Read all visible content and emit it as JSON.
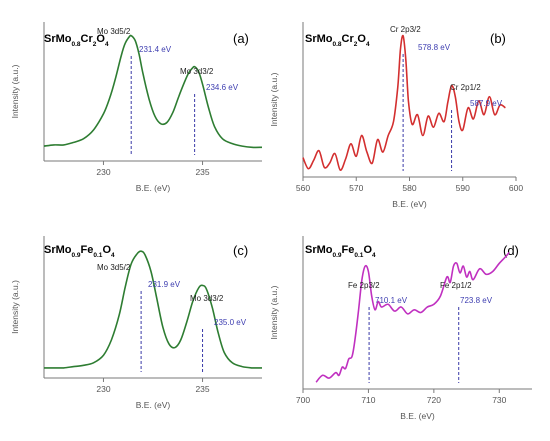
{
  "chart_data": [
    {
      "type": "line",
      "panel_label": "(a)",
      "composition": [
        {
          "text": "SrMo",
          "sub": false
        },
        {
          "text": "0.8",
          "sub": true
        },
        {
          "text": "Cr",
          "sub": false
        },
        {
          "text": "2",
          "sub": true
        },
        {
          "text": "O",
          "sub": false
        },
        {
          "text": "4",
          "sub": true
        }
      ],
      "xlabel": "B.E. (eV)",
      "ylabel": "Intensity (a.u.)",
      "xlim": [
        227.0,
        238.0
      ],
      "ylim": [
        0,
        1.12
      ],
      "xticks": [
        230,
        235
      ],
      "color": "#2e7d32",
      "peaks": [
        {
          "label": "Mo 3d5/2",
          "value": "231.4 eV",
          "x": 231.4
        },
        {
          "label": "Mo 3d3/2",
          "value": "234.6 eV",
          "x": 234.6
        }
      ],
      "series": [
        {
          "x": [
            227.0,
            227.5,
            228.0,
            228.5,
            229.0,
            229.5,
            230.0,
            230.3,
            230.6,
            230.9,
            231.1,
            231.3,
            231.4,
            231.6,
            231.8,
            232.0,
            232.3,
            232.6,
            232.9,
            233.2,
            233.5,
            233.8,
            234.1,
            234.3,
            234.5,
            234.6,
            234.8,
            235.0,
            235.3,
            235.6,
            236.0,
            236.5,
            237.0,
            237.5,
            238.0
          ],
          "y": [
            0.12,
            0.13,
            0.13,
            0.15,
            0.18,
            0.25,
            0.38,
            0.5,
            0.66,
            0.85,
            0.95,
            1.0,
            1.01,
            0.97,
            0.86,
            0.7,
            0.5,
            0.36,
            0.3,
            0.31,
            0.39,
            0.52,
            0.64,
            0.71,
            0.75,
            0.76,
            0.72,
            0.62,
            0.43,
            0.28,
            0.18,
            0.14,
            0.12,
            0.11,
            0.11
          ]
        }
      ]
    },
    {
      "type": "line",
      "panel_label": "(b)",
      "composition": [
        {
          "text": "SrMo",
          "sub": false
        },
        {
          "text": "0.8",
          "sub": true
        },
        {
          "text": "Cr",
          "sub": false
        },
        {
          "text": "2",
          "sub": true
        },
        {
          "text": "O",
          "sub": false
        },
        {
          "text": "4",
          "sub": true
        }
      ],
      "xlabel": "B.E. (eV)",
      "ylabel": "Intensity (a.u.)",
      "xlim": [
        560,
        600
      ],
      "ylim": [
        0,
        1.12
      ],
      "xticks": [
        560,
        570,
        580,
        590,
        600
      ],
      "color": "#d32f2f",
      "peaks": [
        {
          "label": "Cr 2p3/2",
          "value": "578.8 eV",
          "x": 578.8
        },
        {
          "label": "Cr 2p1/2",
          "value": "587.9 eV",
          "x": 587.9
        }
      ],
      "series": [
        {
          "x": [
            560,
            561,
            562,
            563,
            564,
            565,
            566,
            567,
            568,
            569,
            570,
            571,
            572,
            573,
            574,
            575,
            576,
            577,
            577.8,
            578.3,
            578.8,
            579.3,
            579.8,
            580.5,
            581.5,
            582.5,
            583.5,
            584.5,
            585.5,
            586.5,
            587.2,
            587.9,
            588.6,
            589.3,
            590,
            591,
            592,
            593,
            594,
            595,
            596,
            597,
            598
          ],
          "y": [
            0.14,
            0.06,
            0.12,
            0.19,
            0.07,
            0.1,
            0.17,
            0.05,
            0.13,
            0.24,
            0.15,
            0.3,
            0.18,
            0.1,
            0.27,
            0.18,
            0.3,
            0.4,
            0.65,
            0.92,
            1.02,
            0.85,
            0.55,
            0.38,
            0.45,
            0.3,
            0.44,
            0.36,
            0.46,
            0.4,
            0.54,
            0.66,
            0.58,
            0.4,
            0.34,
            0.5,
            0.42,
            0.55,
            0.45,
            0.58,
            0.45,
            0.52,
            0.5
          ]
        }
      ]
    },
    {
      "type": "line",
      "panel_label": "(c)",
      "composition": [
        {
          "text": "SrMo",
          "sub": false
        },
        {
          "text": "0.9",
          "sub": true
        },
        {
          "text": "Fe",
          "sub": false
        },
        {
          "text": "0.1",
          "sub": true
        },
        {
          "text": "O",
          "sub": false
        },
        {
          "text": "4",
          "sub": true
        }
      ],
      "xlabel": "B.E. (eV)",
      "ylabel": "Intensity (a.u.)",
      "xlim": [
        227.0,
        238.0
      ],
      "ylim": [
        0,
        1.12
      ],
      "xticks": [
        230,
        235
      ],
      "color": "#2e7d32",
      "peaks": [
        {
          "label": "Mo 3d5/2",
          "value": "231.9 eV",
          "x": 231.9
        },
        {
          "label": "Mo 3d3/2",
          "value": "235.0 eV",
          "x": 235.0
        }
      ],
      "series": [
        {
          "x": [
            227.0,
            227.5,
            228.0,
            228.5,
            229.0,
            229.5,
            230.0,
            230.4,
            230.8,
            231.1,
            231.4,
            231.7,
            231.9,
            232.1,
            232.4,
            232.7,
            233.0,
            233.3,
            233.6,
            233.9,
            234.2,
            234.5,
            234.8,
            235.0,
            235.2,
            235.5,
            235.8,
            236.1,
            236.5,
            237.0,
            237.5,
            238.0
          ],
          "y": [
            0.08,
            0.08,
            0.08,
            0.09,
            0.1,
            0.12,
            0.18,
            0.3,
            0.5,
            0.72,
            0.9,
            0.98,
            1.0,
            0.97,
            0.84,
            0.62,
            0.4,
            0.27,
            0.24,
            0.3,
            0.44,
            0.6,
            0.71,
            0.73,
            0.7,
            0.55,
            0.35,
            0.2,
            0.12,
            0.09,
            0.08,
            0.08
          ]
        }
      ]
    },
    {
      "type": "line",
      "panel_label": "(d)",
      "composition": [
        {
          "text": "SrMo",
          "sub": false
        },
        {
          "text": "0.9",
          "sub": true
        },
        {
          "text": "Fe",
          "sub": false
        },
        {
          "text": "0.1",
          "sub": true
        },
        {
          "text": "O",
          "sub": false
        },
        {
          "text": "4",
          "sub": true
        }
      ],
      "xlabel": "B.E. (eV)",
      "ylabel": "Intensity (a.u.)",
      "xlim": [
        700,
        735
      ],
      "ylim": [
        0,
        1.12
      ],
      "xticks": [
        700,
        710,
        720,
        730
      ],
      "color": "#c030c0",
      "peaks": [
        {
          "label": "Fe 2p3/2",
          "value": "710.1 eV",
          "x": 710.1
        },
        {
          "label": "Fe 2p1/2",
          "value": "723.8 eV",
          "x": 723.8
        }
      ],
      "series": [
        {
          "x": [
            702,
            703,
            704,
            705,
            705.5,
            706,
            706.5,
            707,
            707.5,
            708,
            708.5,
            709,
            709.5,
            710,
            710.5,
            711,
            711.5,
            712,
            713,
            714,
            715,
            716,
            717,
            718,
            719,
            720,
            721,
            722,
            722.5,
            723,
            723.5,
            724,
            724.5,
            725,
            725.5,
            726,
            727,
            728,
            729,
            730,
            731,
            731.5
          ],
          "y": [
            0.05,
            0.1,
            0.08,
            0.12,
            0.1,
            0.16,
            0.15,
            0.22,
            0.24,
            0.38,
            0.58,
            0.8,
            0.9,
            0.86,
            0.68,
            0.58,
            0.64,
            0.6,
            0.62,
            0.57,
            0.6,
            0.55,
            0.58,
            0.56,
            0.6,
            0.62,
            0.68,
            0.82,
            0.78,
            0.9,
            0.92,
            0.85,
            0.9,
            0.82,
            0.86,
            0.8,
            0.88,
            0.84,
            0.86,
            0.92,
            0.97,
            1.0
          ]
        }
      ]
    }
  ]
}
